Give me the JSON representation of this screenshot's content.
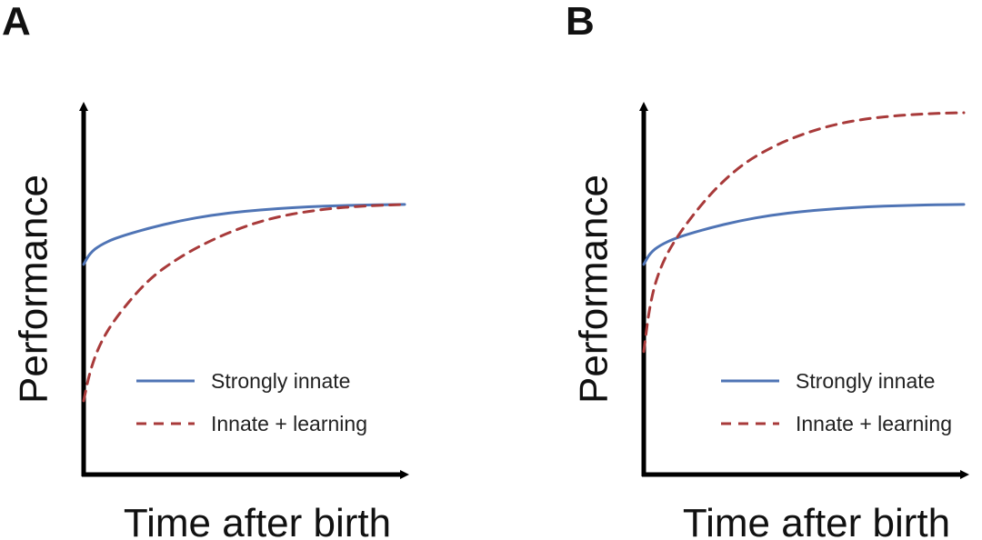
{
  "colors": {
    "strongly_innate": "#4f74b5",
    "innate_learning": "#a83a3a",
    "axis": "#000000"
  },
  "chart_data": [
    {
      "type": "line",
      "panel": "A",
      "xlabel": "Time after birth",
      "ylabel": "Performance",
      "xlim": [
        0,
        1
      ],
      "ylim": [
        0,
        1
      ],
      "legend_position": "bottom-right",
      "series": [
        {
          "name": "Strongly innate",
          "style": "solid",
          "x": [
            0,
            0.02,
            0.05,
            0.1,
            0.2,
            0.3,
            0.4,
            0.5,
            0.6,
            0.7,
            0.8,
            0.9,
            1.0
          ],
          "y": [
            0.6,
            0.63,
            0.65,
            0.67,
            0.695,
            0.715,
            0.73,
            0.74,
            0.747,
            0.752,
            0.755,
            0.757,
            0.758
          ]
        },
        {
          "name": "Innate + learning",
          "style": "dashed",
          "x": [
            0,
            0.02,
            0.05,
            0.1,
            0.2,
            0.3,
            0.4,
            0.5,
            0.6,
            0.7,
            0.8,
            0.9,
            1.0
          ],
          "y": [
            0.24,
            0.32,
            0.39,
            0.46,
            0.56,
            0.62,
            0.665,
            0.7,
            0.725,
            0.74,
            0.75,
            0.755,
            0.758
          ]
        }
      ]
    },
    {
      "type": "line",
      "panel": "B",
      "xlabel": "Time after birth",
      "ylabel": "Performance",
      "xlim": [
        0,
        1
      ],
      "ylim": [
        0,
        1
      ],
      "legend_position": "bottom-right",
      "series": [
        {
          "name": "Strongly innate",
          "style": "solid",
          "x": [
            0,
            0.02,
            0.05,
            0.1,
            0.2,
            0.3,
            0.4,
            0.5,
            0.6,
            0.7,
            0.8,
            0.9,
            1.0
          ],
          "y": [
            0.6,
            0.63,
            0.65,
            0.67,
            0.695,
            0.715,
            0.73,
            0.74,
            0.747,
            0.752,
            0.755,
            0.757,
            0.758
          ]
        },
        {
          "name": "Innate + learning",
          "style": "dashed",
          "x": [
            0,
            0.02,
            0.05,
            0.1,
            0.2,
            0.3,
            0.4,
            0.5,
            0.6,
            0.7,
            0.8,
            0.9,
            1.0
          ],
          "y": [
            0.37,
            0.5,
            0.59,
            0.67,
            0.78,
            0.86,
            0.91,
            0.945,
            0.97,
            0.985,
            0.993,
            0.998,
            1.0
          ]
        }
      ]
    }
  ]
}
